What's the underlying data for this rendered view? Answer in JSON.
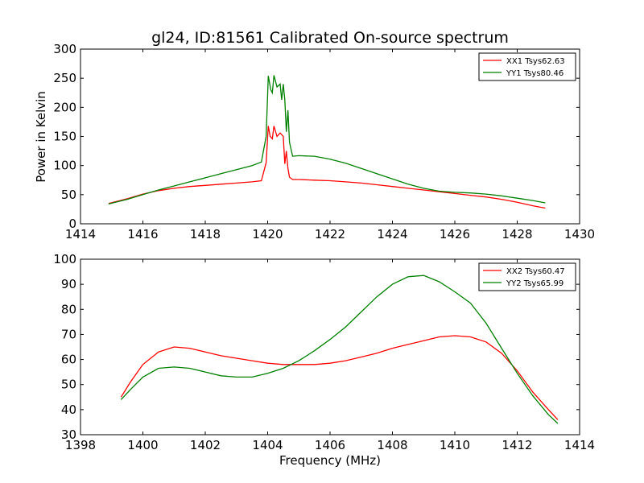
{
  "chart_data": [
    {
      "type": "line",
      "title": "gl24, ID:81561 Calibrated On-source spectrum",
      "xlabel": "",
      "ylabel": "Power in Kelvin",
      "xlim": [
        1414,
        1430
      ],
      "ylim": [
        0,
        300
      ],
      "xticks": [
        "1414",
        "1416",
        "1418",
        "1420",
        "1422",
        "1424",
        "1426",
        "1428",
        "1430"
      ],
      "yticks": [
        "0",
        "50",
        "100",
        "150",
        "200",
        "250",
        "300"
      ],
      "grid": false,
      "legend": "top-right",
      "series": [
        {
          "name": "XX1 Tsys62.63",
          "color": "#ff0000",
          "x": [
            1414.9,
            1415.5,
            1416.0,
            1416.5,
            1417.0,
            1417.5,
            1418.0,
            1418.5,
            1419.0,
            1419.5,
            1419.8,
            1419.95,
            1420.02,
            1420.08,
            1420.15,
            1420.2,
            1420.3,
            1420.4,
            1420.5,
            1420.55,
            1420.6,
            1420.65,
            1420.7,
            1420.8,
            1421.0,
            1421.5,
            1422.0,
            1422.5,
            1423.0,
            1423.5,
            1424.0,
            1424.5,
            1425.0,
            1425.5,
            1426.0,
            1426.5,
            1427.0,
            1427.5,
            1428.0,
            1428.5,
            1428.9
          ],
          "y": [
            35,
            43,
            51,
            57,
            61,
            64,
            66,
            68,
            70,
            72,
            74,
            105,
            168,
            150,
            146,
            168,
            150,
            156,
            150,
            103,
            125,
            95,
            80,
            76,
            76,
            75,
            74,
            72,
            70,
            67,
            64,
            61,
            58,
            55,
            52,
            49,
            46,
            42,
            37,
            31,
            27
          ]
        },
        {
          "name": "YY1 Tsys80.46",
          "color": "#008000",
          "x": [
            1414.9,
            1415.5,
            1416.0,
            1416.5,
            1417.0,
            1417.5,
            1418.0,
            1418.5,
            1419.0,
            1419.5,
            1419.8,
            1419.95,
            1420.02,
            1420.1,
            1420.15,
            1420.2,
            1420.3,
            1420.4,
            1420.45,
            1420.5,
            1420.55,
            1420.6,
            1420.65,
            1420.7,
            1420.8,
            1421.0,
            1421.5,
            1422.0,
            1422.5,
            1423.0,
            1423.5,
            1424.0,
            1424.5,
            1425.0,
            1425.5,
            1426.0,
            1426.5,
            1427.0,
            1427.5,
            1428.0,
            1428.5,
            1428.9
          ],
          "y": [
            34,
            42,
            50,
            58,
            65,
            72,
            79,
            86,
            93,
            100,
            106,
            150,
            254,
            230,
            225,
            255,
            235,
            240,
            213,
            240,
            213,
            158,
            195,
            140,
            116,
            117,
            116,
            111,
            104,
            95,
            86,
            77,
            68,
            61,
            56,
            54,
            53,
            51,
            48,
            44,
            40,
            36
          ]
        }
      ]
    },
    {
      "type": "line",
      "title": "",
      "xlabel": "Frequency (MHz)",
      "ylabel": "",
      "xlim": [
        1398,
        1414
      ],
      "ylim": [
        30,
        100
      ],
      "xticks": [
        "1398",
        "1400",
        "1402",
        "1404",
        "1406",
        "1408",
        "1410",
        "1412",
        "1414"
      ],
      "yticks": [
        "30",
        "40",
        "50",
        "60",
        "70",
        "80",
        "90",
        "100"
      ],
      "grid": false,
      "legend": "top-right",
      "series": [
        {
          "name": "XX2 Tsys60.47",
          "color": "#ff0000",
          "x": [
            1399.3,
            1399.6,
            1400.0,
            1400.5,
            1401.0,
            1401.5,
            1402.0,
            1402.5,
            1403.0,
            1403.5,
            1404.0,
            1404.5,
            1405.0,
            1405.5,
            1406.0,
            1406.5,
            1407.0,
            1407.5,
            1408.0,
            1408.5,
            1409.0,
            1409.5,
            1410.0,
            1410.5,
            1411.0,
            1411.5,
            1412.0,
            1412.5,
            1413.0,
            1413.3
          ],
          "y": [
            45,
            51,
            58,
            63,
            65,
            64.5,
            63,
            61.5,
            60.5,
            59.5,
            58.5,
            58,
            58,
            58,
            58.5,
            59.5,
            61,
            62.5,
            64.5,
            66,
            67.5,
            69,
            69.5,
            69,
            67,
            62.5,
            55.5,
            47,
            40,
            36
          ]
        },
        {
          "name": "YY2 Tsys65.99",
          "color": "#008000",
          "x": [
            1399.3,
            1399.6,
            1400.0,
            1400.5,
            1401.0,
            1401.5,
            1402.0,
            1402.5,
            1403.0,
            1403.5,
            1404.0,
            1404.5,
            1405.0,
            1405.5,
            1406.0,
            1406.5,
            1407.0,
            1407.5,
            1408.0,
            1408.5,
            1409.0,
            1409.5,
            1410.0,
            1410.5,
            1411.0,
            1411.5,
            1412.0,
            1412.5,
            1413.0,
            1413.3
          ],
          "y": [
            44,
            48,
            53,
            56.5,
            57,
            56.5,
            55,
            53.5,
            53,
            53,
            54.5,
            56.5,
            59.5,
            63.5,
            68,
            73,
            79,
            85,
            90,
            93,
            93.5,
            91,
            87,
            82.5,
            74.5,
            64.5,
            54.5,
            45.5,
            38,
            34.5
          ]
        }
      ]
    }
  ]
}
